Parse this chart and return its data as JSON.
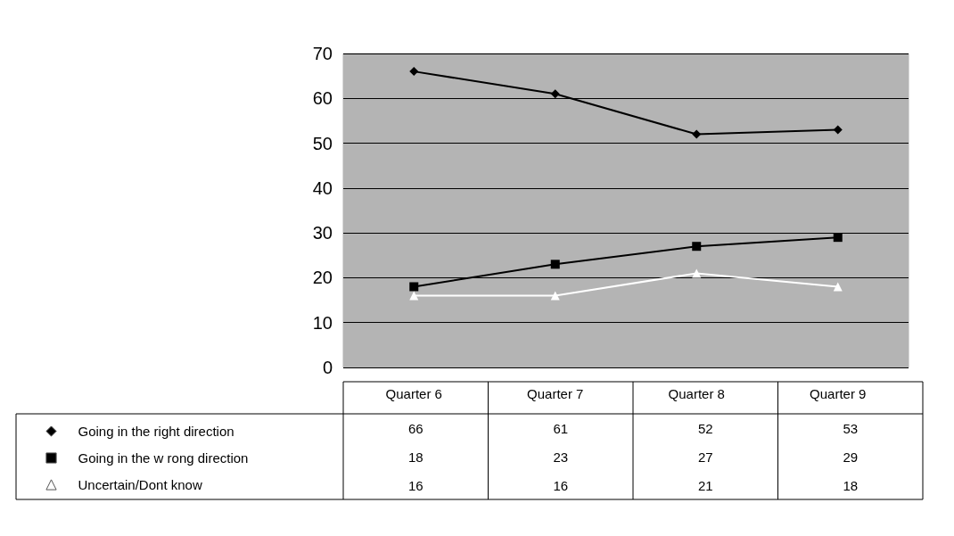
{
  "chart_data": {
    "type": "line",
    "categories": [
      "Quarter 6",
      "Quarter 7",
      "Quarter 8",
      "Quarter 9"
    ],
    "series": [
      {
        "name": "Going in the right direction",
        "color": "#000000",
        "marker": "diamond",
        "values": [
          66,
          61,
          52,
          53
        ]
      },
      {
        "name": "Going in the w rong direction",
        "color": "#000000",
        "marker": "square",
        "values": [
          18,
          23,
          27,
          29
        ]
      },
      {
        "name": "Uncertain/Dont know",
        "color": "#ffffff",
        "marker": "triangle",
        "values": [
          16,
          16,
          21,
          18
        ]
      }
    ],
    "ylim": [
      0,
      70
    ],
    "yticks": [
      0,
      10,
      20,
      30,
      40,
      50,
      60,
      70
    ],
    "grid": "y",
    "legend": "bottom left",
    "data_labels": true
  }
}
